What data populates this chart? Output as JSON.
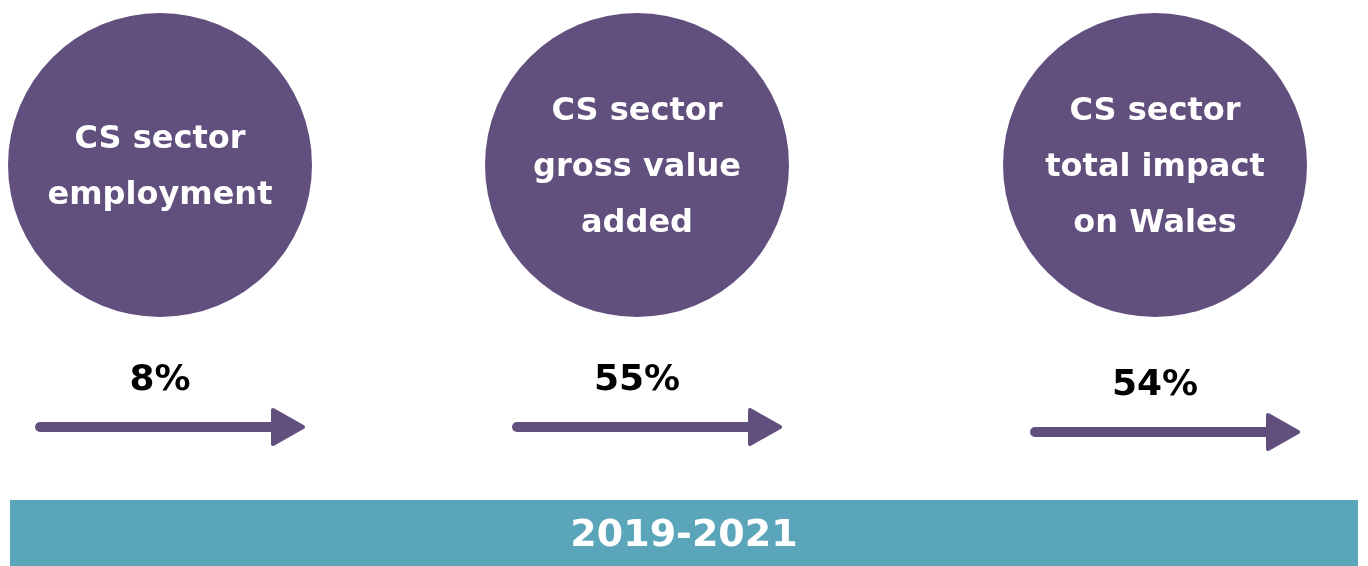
{
  "chart_data": {
    "type": "other",
    "categories": [
      "CS sector employment",
      "CS sector gross value added",
      "CS sector total impact on Wales"
    ],
    "values": [
      8,
      55,
      54
    ],
    "value_labels": [
      "8%",
      "55%",
      "54%"
    ],
    "color": "#614f7d",
    "annotations": [
      "2019-2021"
    ]
  }
}
